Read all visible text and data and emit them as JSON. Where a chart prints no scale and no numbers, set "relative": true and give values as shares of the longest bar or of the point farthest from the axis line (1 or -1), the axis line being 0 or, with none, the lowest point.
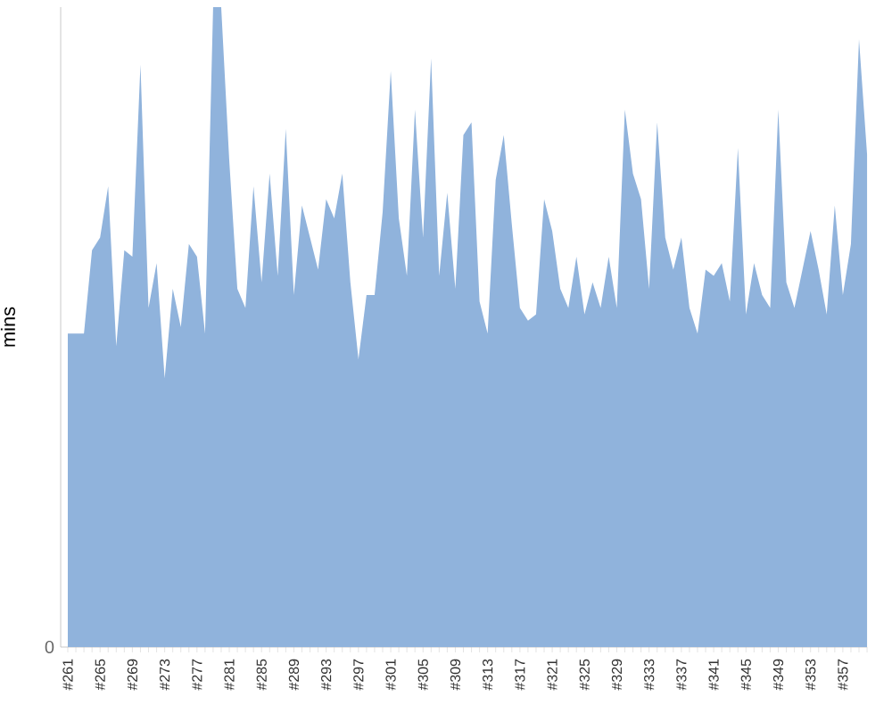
{
  "chart_data": {
    "type": "area",
    "ylabel": "mins",
    "relative": true,
    "color": "#90b3dc",
    "annotations": [
      "0"
    ],
    "categories": [
      "#261",
      null,
      null,
      null,
      "#265",
      null,
      null,
      null,
      "#269",
      null,
      null,
      null,
      "#273",
      null,
      null,
      null,
      "#277",
      null,
      null,
      null,
      "#281",
      null,
      null,
      null,
      "#285",
      null,
      null,
      null,
      "#289",
      null,
      null,
      null,
      "#293",
      null,
      null,
      null,
      "#297",
      null,
      null,
      null,
      "#301",
      null,
      null,
      null,
      "#305",
      null,
      null,
      null,
      "#309",
      null,
      null,
      null,
      "#313",
      null,
      null,
      null,
      "#317",
      null,
      null,
      null,
      "#321",
      null,
      null,
      null,
      "#325",
      null,
      null,
      null,
      "#329",
      null,
      null,
      null,
      "#333",
      null,
      null,
      null,
      "#337",
      null,
      null,
      null,
      "#341",
      null,
      null,
      null,
      "#345",
      null,
      null,
      null,
      "#349",
      null,
      null,
      null,
      "#353",
      null,
      null,
      null,
      "#357",
      null,
      null,
      null
    ],
    "values": [
      0.49,
      0.49,
      0.49,
      0.62,
      0.64,
      0.72,
      0.47,
      0.62,
      0.61,
      0.91,
      0.53,
      0.6,
      0.42,
      0.56,
      0.5,
      0.63,
      0.61,
      0.49,
      1,
      1,
      0.76,
      0.56,
      0.53,
      0.72,
      0.57,
      0.74,
      0.58,
      0.81,
      0.55,
      0.69,
      0.64,
      0.59,
      0.7,
      0.67,
      0.74,
      0.57,
      0.45,
      0.55,
      0.55,
      0.68,
      0.9,
      0.67,
      0.58,
      0.84,
      0.64,
      0.92,
      0.58,
      0.71,
      0.56,
      0.8,
      0.82,
      0.54,
      0.49,
      0.73,
      0.8,
      0.66,
      0.53,
      0.51,
      0.52,
      0.7,
      0.65,
      0.56,
      0.53,
      0.61,
      0.52,
      0.57,
      0.53,
      0.61,
      0.53,
      0.84,
      0.74,
      0.7,
      0.56,
      0.82,
      0.64,
      0.59,
      0.64,
      0.53,
      0.49,
      0.59,
      0.58,
      0.6,
      0.54,
      0.78,
      0.52,
      0.6,
      0.55,
      0.53,
      0.84,
      0.57,
      0.53,
      0.59,
      0.65,
      0.59,
      0.52,
      0.69,
      0.55,
      0.63,
      0.95,
      0.77
    ]
  }
}
